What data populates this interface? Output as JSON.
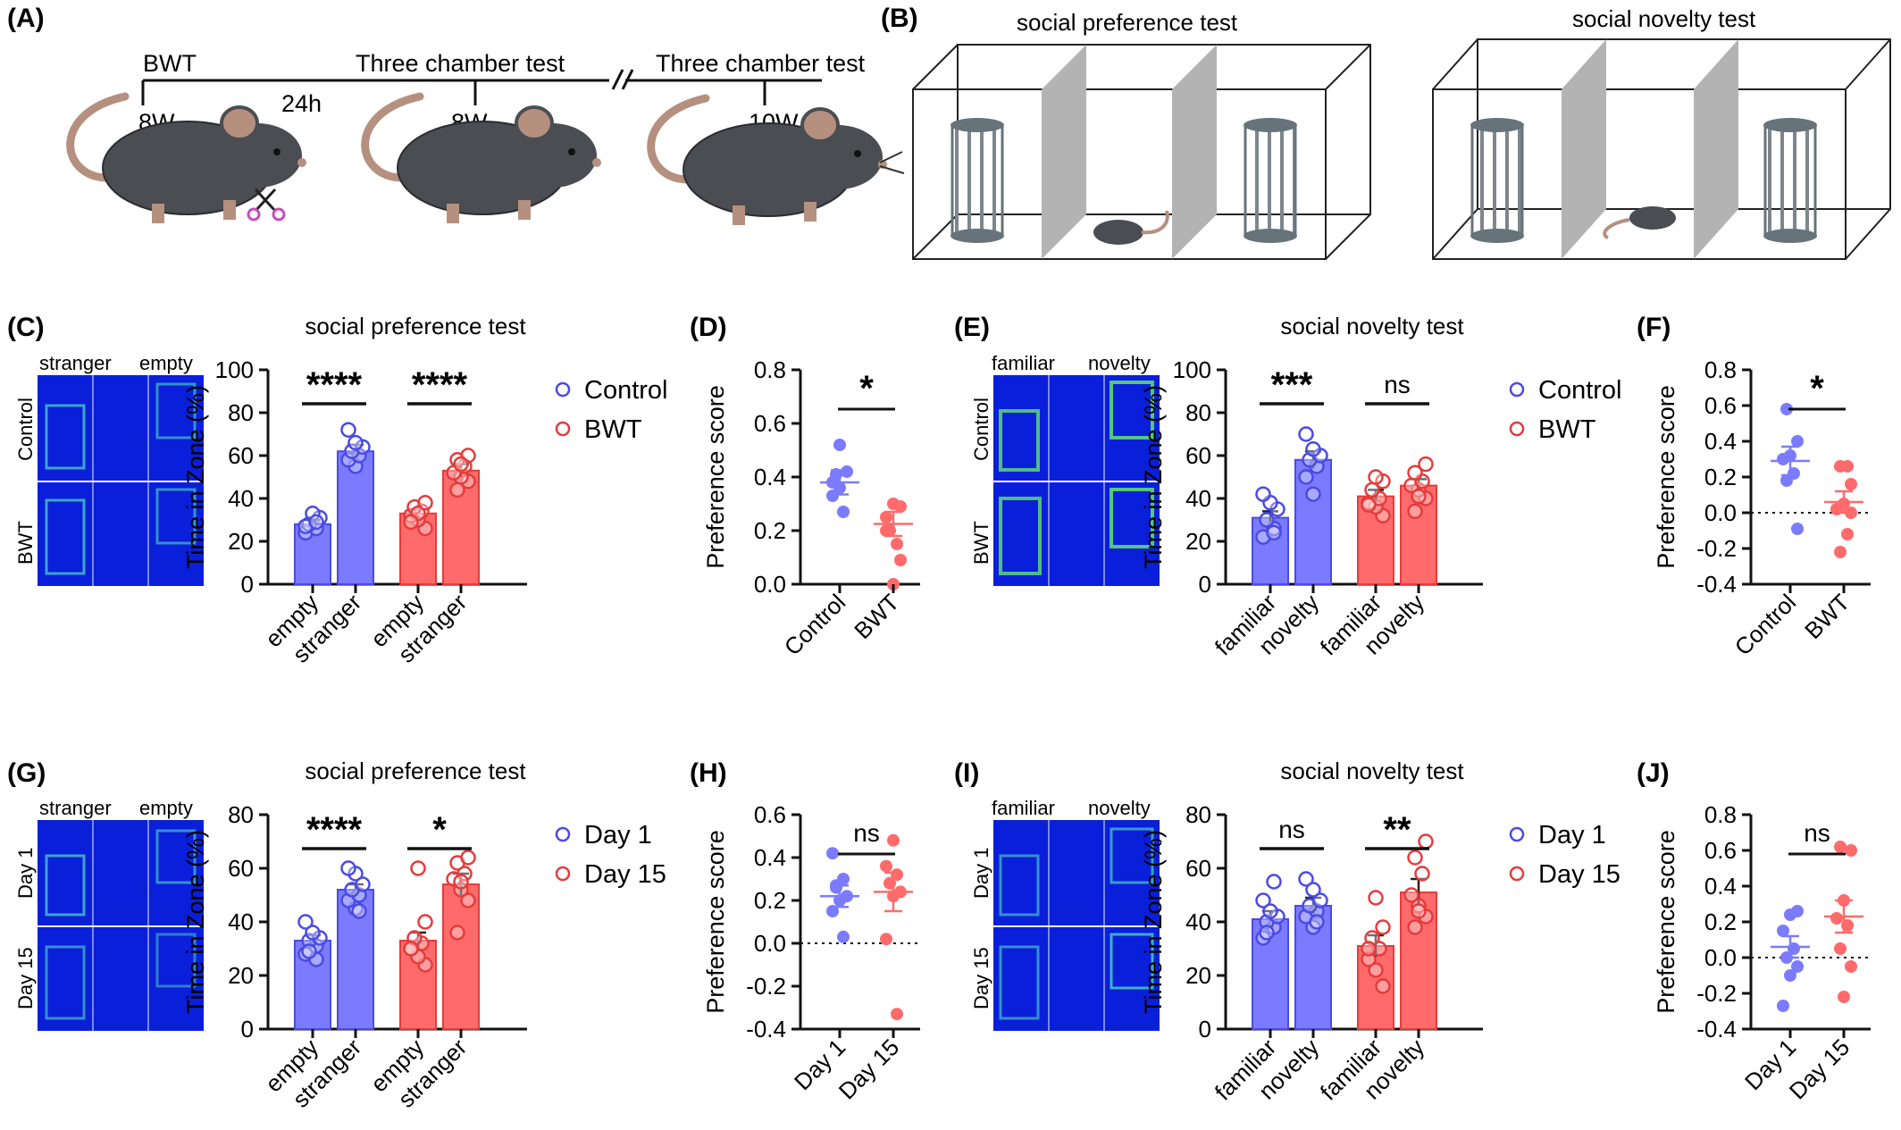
{
  "colors": {
    "control": "#7b7bff",
    "control_edge": "#4a4ae6",
    "bwt": "#ff6b6b",
    "bwt_edge": "#e63b3b",
    "heat_bg": "#0a1fd9",
    "heat_line": "#e8f0ff",
    "mouse": "#4a4d52",
    "tail": "#b5907f",
    "cage": "#67737b",
    "divider": "#b3b3b3"
  },
  "panels": {
    "A": "(A)",
    "B": "(B)",
    "C": "(C)",
    "D": "(D)",
    "E": "(E)",
    "F": "(F)",
    "G": "(G)",
    "H": "(H)",
    "I": "(I)",
    "J": "(J)"
  },
  "timeline": {
    "bwt": "BWT",
    "gap": "24h",
    "test1": "Three chamber test",
    "test2": "Three chamber test",
    "age1": "8W",
    "age2": "8W",
    "age3": "10W"
  },
  "schematic": {
    "title1": "social preference test",
    "title2": "social novelty test"
  },
  "heatmaps": [
    {
      "left": "stranger",
      "right": "empty",
      "row1": "Control",
      "row2": "BWT"
    },
    {
      "left": "familiar",
      "right": "novelty",
      "row1": "Control",
      "row2": "BWT"
    },
    {
      "left": "stranger",
      "right": "empty",
      "row1": "Day 1",
      "row2": "Day 15"
    },
    {
      "left": "familiar",
      "right": "novelty",
      "row1": "Day 1",
      "row2": "Day 15"
    }
  ],
  "legends": [
    {
      "a": "Control",
      "b": "BWT"
    },
    {
      "a": "Control",
      "b": "BWT"
    },
    {
      "a": "Day 1",
      "b": "Day 15"
    },
    {
      "a": "Day 1",
      "b": "Day 15"
    }
  ],
  "chart_data": [
    {
      "panel": "C",
      "type": "bar",
      "title": "social preference test",
      "ylabel": "Time in Zone (%)",
      "ylim": [
        0,
        100
      ],
      "yticks": [
        0,
        20,
        40,
        60,
        80,
        100
      ],
      "categories": [
        "empty",
        "stranger",
        "empty",
        "stranger"
      ],
      "series": [
        {
          "name": "Control",
          "means": [
            28,
            62
          ],
          "sem": [
            2,
            3
          ],
          "points": [
            [
              24,
              26,
              28,
              31,
              33,
              27,
              29
            ],
            [
              55,
              58,
              60,
              62,
              64,
              66,
              72
            ]
          ]
        },
        {
          "name": "BWT",
          "means": [
            33,
            53
          ],
          "sem": [
            2,
            3
          ],
          "points": [
            [
              26,
              30,
              32,
              34,
              36,
              38,
              33,
              29
            ],
            [
              44,
              48,
              50,
              52,
              55,
              58,
              60,
              56
            ]
          ]
        }
      ],
      "significance": [
        "****",
        "****"
      ]
    },
    {
      "panel": "D",
      "type": "scatter",
      "ylabel": "Preference score",
      "ylim": [
        0,
        0.8
      ],
      "yticks": [
        "0.0",
        "0.2",
        "0.4",
        "0.6",
        "0.8"
      ],
      "categories": [
        "Control",
        "BWT"
      ],
      "means": [
        0.38,
        0.225
      ],
      "sem": [
        0.045,
        0.045
      ],
      "points": [
        [
          0.52,
          0.33,
          0.27,
          0.41,
          0.42,
          0.36,
          0.38
        ],
        [
          0.29,
          0.3,
          0.25,
          0.15,
          0.2,
          0.09,
          0.0,
          0.2
        ]
      ],
      "significance": "*"
    },
    {
      "panel": "E",
      "type": "bar",
      "title": "social novelty test",
      "ylabel": "Time in Zone (%)",
      "ylim": [
        0,
        100
      ],
      "yticks": [
        0,
        20,
        40,
        60,
        80,
        100
      ],
      "categories": [
        "familiar",
        "novelty",
        "familiar",
        "novelty"
      ],
      "series": [
        {
          "name": "Control",
          "means": [
            31,
            58
          ],
          "sem": [
            3,
            4
          ],
          "points": [
            [
              22,
              26,
              30,
              35,
              38,
              42,
              24
            ],
            [
              42,
              50,
              55,
              58,
              60,
              63,
              70
            ]
          ]
        },
        {
          "name": "BWT",
          "means": [
            41,
            46
          ],
          "sem": [
            3,
            3
          ],
          "points": [
            [
              32,
              36,
              38,
              40,
              44,
              48,
              50,
              37
            ],
            [
              34,
              40,
              44,
              46,
              48,
              52,
              56,
              41
            ]
          ]
        }
      ],
      "significance": [
        "***",
        "ns"
      ]
    },
    {
      "panel": "F",
      "type": "scatter",
      "ylabel": "Preference score",
      "ylim": [
        -0.4,
        0.8
      ],
      "yticks": [
        "-0.4",
        "-0.2",
        "0.0",
        "0.2",
        "0.4",
        "0.6",
        "0.8"
      ],
      "zero_line": true,
      "categories": [
        "Control",
        "BWT"
      ],
      "means": [
        0.29,
        0.06
      ],
      "sem": [
        0.08,
        0.06
      ],
      "points": [
        [
          0.58,
          0.4,
          0.32,
          0.3,
          0.22,
          0.18,
          -0.09
        ],
        [
          0.26,
          0.26,
          0.16,
          0.05,
          0.02,
          -0.12,
          -0.22,
          0.0
        ]
      ],
      "significance": "*"
    },
    {
      "panel": "G",
      "type": "bar",
      "title": "social preference test",
      "ylabel": "Time in Zone (%)",
      "ylim": [
        0,
        80
      ],
      "yticks": [
        0,
        20,
        40,
        60,
        80
      ],
      "categories": [
        "empty",
        "stranger",
        "empty",
        "stranger"
      ],
      "series": [
        {
          "name": "Day 1",
          "means": [
            33,
            52
          ],
          "sem": [
            2,
            2
          ],
          "points": [
            [
              28,
              31,
              33,
              34,
              36,
              40,
              26,
              29
            ],
            [
              45,
              48,
              50,
              52,
              54,
              58,
              60,
              44
            ]
          ]
        },
        {
          "name": "Day 15",
          "means": [
            33,
            54
          ],
          "sem": [
            3,
            4
          ],
          "points": [
            [
              24,
              27,
              30,
              32,
              34,
              40,
              60,
              30
            ],
            [
              36,
              48,
              52,
              56,
              58,
              62,
              64,
              55
            ]
          ]
        }
      ],
      "significance": [
        "****",
        "*"
      ]
    },
    {
      "panel": "H",
      "type": "scatter",
      "ylabel": "Preference score",
      "ylim": [
        -0.4,
        0.6
      ],
      "yticks": [
        "-0.4",
        "-0.2",
        "0.0",
        "0.2",
        "0.4",
        "0.6"
      ],
      "zero_line": true,
      "categories": [
        "Day 1",
        "Day 15"
      ],
      "means": [
        0.22,
        0.24
      ],
      "sem": [
        0.05,
        0.09
      ],
      "points": [
        [
          0.42,
          0.3,
          0.26,
          0.22,
          0.2,
          0.15,
          0.03,
          0.27
        ],
        [
          0.48,
          0.36,
          0.32,
          0.28,
          0.24,
          0.22,
          0.02,
          -0.33
        ]
      ],
      "significance": "ns"
    },
    {
      "panel": "I",
      "type": "bar",
      "title": "social novelty test",
      "ylabel": "Time in Zone (%)",
      "ylim": [
        0,
        80
      ],
      "yticks": [
        0,
        20,
        40,
        60,
        80
      ],
      "categories": [
        "familiar",
        "novelty",
        "familiar",
        "novelty"
      ],
      "series": [
        {
          "name": "Day 1",
          "means": [
            41,
            46
          ],
          "sem": [
            3,
            3
          ],
          "points": [
            [
              34,
              38,
              40,
              42,
              44,
              48,
              55,
              36
            ],
            [
              38,
              42,
              44,
              46,
              48,
              52,
              56,
              40
            ]
          ]
        },
        {
          "name": "Day 15",
          "means": [
            31,
            51
          ],
          "sem": [
            4,
            5
          ],
          "points": [
            [
              16,
              22,
              26,
              30,
              34,
              38,
              49,
              30
            ],
            [
              38,
              42,
              46,
              50,
              58,
              64,
              70,
              44
            ]
          ]
        }
      ],
      "significance": [
        "ns",
        "**"
      ]
    },
    {
      "panel": "J",
      "type": "scatter",
      "ylabel": "Preference score",
      "ylim": [
        -0.4,
        0.8
      ],
      "yticks": [
        "-0.4",
        "-0.2",
        "0.0",
        "0.2",
        "0.4",
        "0.6",
        "0.8"
      ],
      "zero_line": true,
      "categories": [
        "Day 1",
        "Day 15"
      ],
      "means": [
        0.06,
        0.23
      ],
      "sem": [
        0.06,
        0.09
      ],
      "points": [
        [
          0.26,
          0.24,
          0.15,
          0.05,
          0.0,
          -0.05,
          -0.1,
          -0.27
        ],
        [
          0.62,
          0.6,
          0.32,
          0.22,
          0.18,
          0.05,
          -0.05,
          -0.22
        ]
      ],
      "significance": "ns"
    }
  ]
}
